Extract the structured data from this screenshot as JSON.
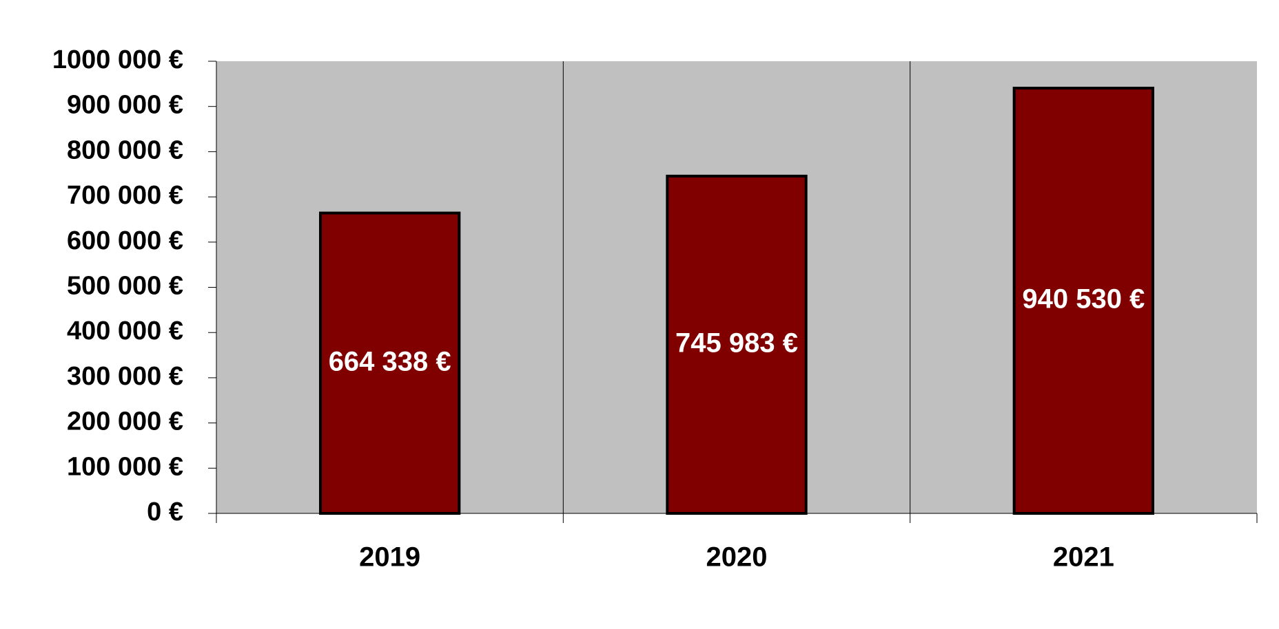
{
  "chart_data": {
    "type": "bar",
    "categories": [
      "2019",
      "2020",
      "2021"
    ],
    "values": [
      664338,
      745983,
      940530
    ],
    "value_labels": [
      "664 338 €",
      "745 983 €",
      "940 530 €"
    ],
    "color": "#800000",
    "ylim": [
      0,
      1000000
    ],
    "yticks": [
      {
        "value": 0,
        "label": "0 €"
      },
      {
        "value": 100000,
        "label": "100 000 €"
      },
      {
        "value": 200000,
        "label": "200 000 €"
      },
      {
        "value": 300000,
        "label": "300 000 €"
      },
      {
        "value": 400000,
        "label": "400 000 €"
      },
      {
        "value": 500000,
        "label": "500 000 €"
      },
      {
        "value": 600000,
        "label": "600 000 €"
      },
      {
        "value": 700000,
        "label": "700 000 €"
      },
      {
        "value": 800000,
        "label": "800 000 €"
      },
      {
        "value": 900000,
        "label": "900 000 €"
      },
      {
        "value": 1000000,
        "label": "1000 000 €"
      }
    ]
  }
}
